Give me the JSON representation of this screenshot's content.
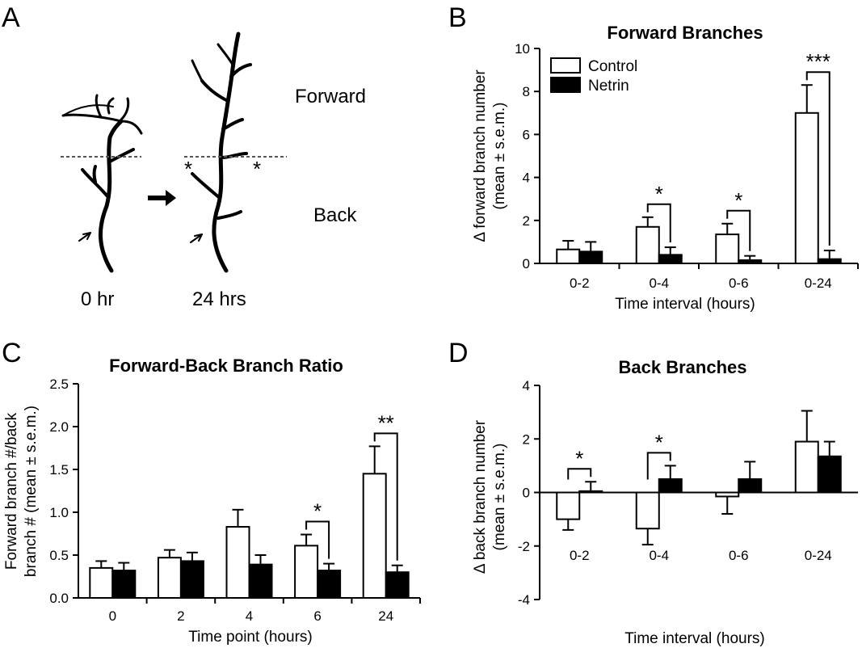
{
  "panels": {
    "A": "A",
    "B": "B",
    "C": "C",
    "D": "D"
  },
  "diagram": {
    "forward_label": "Forward",
    "back_label": "Back",
    "time_before": "0 hr",
    "time_after": "24 hrs",
    "asterisk": "*"
  },
  "legend": {
    "control": "Control",
    "netrin": "Netrin",
    "control_color": "#ffffff",
    "netrin_color": "#000000"
  },
  "chart_data": [
    {
      "panel": "B",
      "type": "bar",
      "title": "Forward Branches",
      "xlabel": "Time interval (hours)",
      "ylabel_line1": "Δ forward branch number",
      "ylabel_line2": "(mean ± s.e.m.)",
      "categories": [
        "0-2",
        "0-4",
        "0-6",
        "0-24"
      ],
      "ylim": [
        0,
        10
      ],
      "yticks": [
        "0",
        "2",
        "4",
        "6",
        "8",
        "10"
      ],
      "ytick_values": [
        0,
        2,
        4,
        6,
        8,
        10
      ],
      "series": [
        {
          "name": "Control",
          "values": [
            0.65,
            1.7,
            1.35,
            7.0
          ],
          "errors": [
            0.4,
            0.45,
            0.5,
            1.3
          ]
        },
        {
          "name": "Netrin",
          "values": [
            0.55,
            0.4,
            0.15,
            0.2
          ],
          "errors": [
            0.45,
            0.35,
            0.2,
            0.4
          ]
        }
      ],
      "significance": [
        {
          "category": 1,
          "label": "*"
        },
        {
          "category": 2,
          "label": "*"
        },
        {
          "category": 3,
          "label": "***"
        }
      ],
      "legend_position": "top-left"
    },
    {
      "panel": "C",
      "type": "bar",
      "title": "Forward-Back Branch Ratio",
      "xlabel": "Time point (hours)",
      "ylabel_line1": "Forward branch #/back",
      "ylabel_line2": "branch # (mean ± s.e.m.)",
      "categories": [
        "0",
        "2",
        "4",
        "6",
        "24"
      ],
      "ylim": [
        0,
        2.5
      ],
      "yticks": [
        "0.0",
        "0.5",
        "1.0",
        "1.5",
        "2.0",
        "2.5"
      ],
      "ytick_values": [
        0,
        0.5,
        1.0,
        1.5,
        2.0,
        2.5
      ],
      "series": [
        {
          "name": "Control",
          "values": [
            0.35,
            0.47,
            0.83,
            0.61,
            1.45
          ],
          "errors": [
            0.08,
            0.09,
            0.2,
            0.13,
            0.32
          ]
        },
        {
          "name": "Netrin",
          "values": [
            0.32,
            0.43,
            0.39,
            0.32,
            0.3
          ],
          "errors": [
            0.09,
            0.1,
            0.11,
            0.08,
            0.08
          ]
        }
      ],
      "significance": [
        {
          "category": 3,
          "label": "*"
        },
        {
          "category": 4,
          "label": "**"
        }
      ]
    },
    {
      "panel": "D",
      "type": "bar",
      "title": "Back Branches",
      "xlabel": "Time interval (hours)",
      "ylabel_line1": "Δ back branch number",
      "ylabel_line2": "(mean ± s.e.m.)",
      "categories": [
        "0-2",
        "0-4",
        "0-6",
        "0-24"
      ],
      "ylim": [
        -4,
        4
      ],
      "yticks": [
        "-4",
        "-2",
        "0",
        "2",
        "4"
      ],
      "ytick_values": [
        -4,
        -2,
        0,
        2,
        4
      ],
      "series": [
        {
          "name": "Control",
          "values": [
            -1.0,
            -1.35,
            -0.15,
            1.9
          ],
          "errors": [
            0.4,
            0.6,
            0.65,
            1.15
          ]
        },
        {
          "name": "Netrin",
          "values": [
            0.05,
            0.5,
            0.5,
            1.35
          ],
          "errors": [
            0.35,
            0.5,
            0.65,
            0.55
          ]
        }
      ],
      "significance": [
        {
          "category": 0,
          "label": "*"
        },
        {
          "category": 1,
          "label": "*"
        }
      ]
    }
  ]
}
